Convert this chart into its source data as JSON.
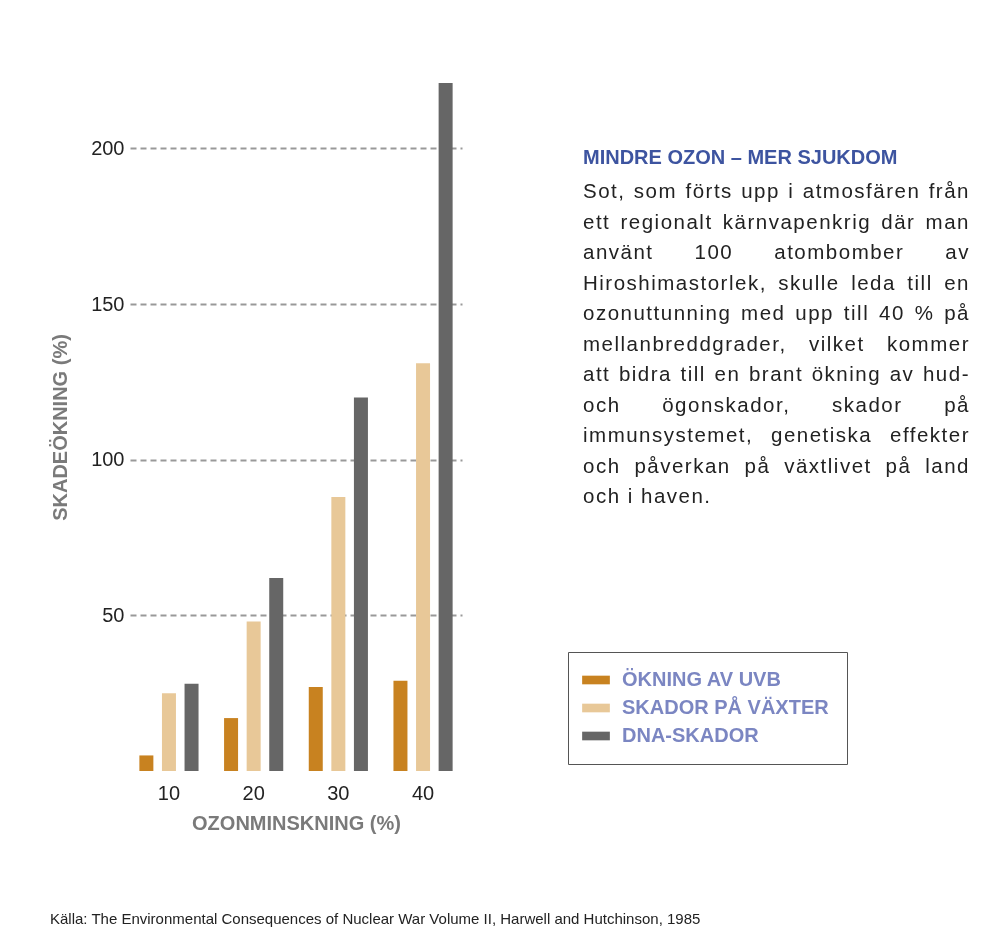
{
  "chart_data": {
    "type": "bar",
    "title": "MINDRE OZON – MER SJUKDOM",
    "subtitle": "Sot, som förts upp i atmosfären från ett regionalt kärnvapenkrig där man använt 100 atombomber av Hiroshimastorlek, skulle leda till en ozonuttunning med upp till 40 % på mellanbreddgrader, vilket kommer att bidra till en brant ökning av hud- och ögonskador, skador på immunsystemet, genetiska effekter och påverkan på växtlivet på land och i haven.",
    "xlabel": "OZONMINSKNING (%)",
    "ylabel": "SKADEÖKNING (%)",
    "annotations": [
      "Källa: The Environmental Consequences of Nuclear War Volume II, Harwell and Hutchinson, 1985"
    ],
    "categories": [
      "10",
      "20",
      "30",
      "40"
    ],
    "series": [
      {
        "name": "ÖKNING AV UVB",
        "color": "#c88220",
        "values": [
          5,
          17,
          27,
          29
        ]
      },
      {
        "name": "SKADOR PÅ VÄXTER",
        "color": "#e8c898",
        "values": [
          25,
          48,
          88,
          131
        ]
      },
      {
        "name": "DNA-SKADOR",
        "color": "#666666",
        "values": [
          28,
          62,
          120,
          221
        ]
      }
    ],
    "ylim": [
      0,
      221
    ],
    "yticks": [
      50,
      100,
      150,
      200
    ],
    "grid": "y",
    "legend": "right"
  }
}
